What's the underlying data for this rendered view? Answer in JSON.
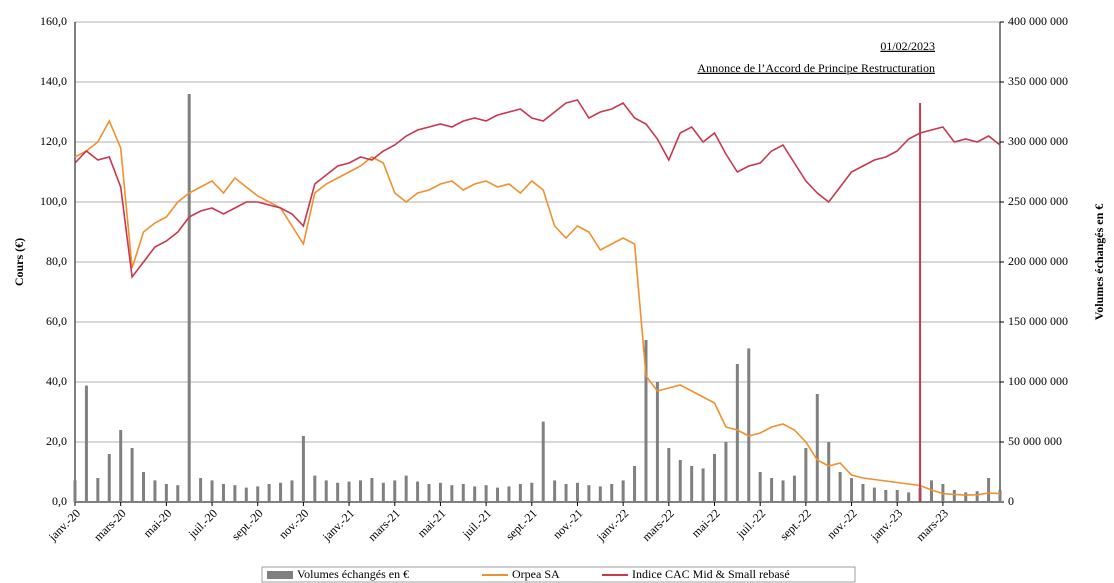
{
  "chart_data": {
    "type": "combo",
    "y_label": "Cours (€)",
    "y2_label": "Volumes échangés en €",
    "annotation": {
      "date": "01/02/2023",
      "text": "Annonce de l’Accord de Principe Restructuration",
      "category_index": 74,
      "value": 133
    },
    "categories": [
      "janv.-20",
      null,
      null,
      null,
      "mars-20",
      null,
      null,
      null,
      "mai-20",
      null,
      null,
      null,
      "juil.-20",
      null,
      null,
      null,
      "sept.-20",
      null,
      null,
      null,
      "nov.-20",
      null,
      null,
      null,
      "janv.-21",
      null,
      null,
      null,
      "mars-21",
      null,
      null,
      null,
      "mai-21",
      null,
      null,
      null,
      "juil.-21",
      null,
      null,
      null,
      "sept.-21",
      null,
      null,
      null,
      "nov.-21",
      null,
      null,
      null,
      "janv.-22",
      null,
      null,
      null,
      "mars-22",
      null,
      null,
      null,
      "mai-22",
      null,
      null,
      null,
      "juil.-22",
      null,
      null,
      null,
      "sept.-22",
      null,
      null,
      null,
      "nov.-22",
      null,
      null,
      null,
      "janv.-23",
      null,
      null,
      null,
      "mars-23",
      null,
      null,
      null,
      null,
      null
    ],
    "ylim": [
      0,
      160
    ],
    "yticks": [
      {
        "value": 0,
        "label": "0,0"
      },
      {
        "value": 20,
        "label": "20,0"
      },
      {
        "value": 40,
        "label": "40,0"
      },
      {
        "value": 60,
        "label": "60,0"
      },
      {
        "value": 80,
        "label": "80,0"
      },
      {
        "value": 100,
        "label": "100,0"
      },
      {
        "value": 120,
        "label": "120,0"
      },
      {
        "value": 140,
        "label": "140,0"
      },
      {
        "value": 160,
        "label": "160,0"
      }
    ],
    "y2lim": [
      0,
      400000000
    ],
    "y2ticks": [
      0,
      {
        "value": 50000000,
        "label": "50 000 000"
      },
      {
        "value": 100000000,
        "label": "100 000 000"
      },
      {
        "value": 150000000,
        "label": "150 000 000"
      },
      {
        "value": 200000000,
        "label": "200 000 000"
      },
      {
        "value": 250000000,
        "label": "250 000 000"
      },
      {
        "value": 300000000,
        "label": "300 000 000"
      },
      {
        "value": 350000000,
        "label": "350 000 000"
      },
      {
        "value": 400000000,
        "label": "400 000 000"
      }
    ],
    "grid": true,
    "series": [
      {
        "name": "Volumes échangés en €",
        "type": "bar",
        "axis": "y2",
        "color": "#808080",
        "values": [
          18000000,
          97000000,
          20000000,
          40000000,
          60000000,
          45000000,
          25000000,
          18000000,
          15000000,
          14000000,
          340000000,
          20000000,
          18000000,
          15000000,
          14000000,
          12000000,
          13000000,
          15000000,
          16000000,
          18000000,
          55000000,
          22000000,
          18000000,
          16000000,
          17000000,
          18000000,
          20000000,
          16000000,
          18000000,
          22000000,
          17000000,
          15000000,
          16000000,
          14000000,
          15000000,
          13000000,
          14000000,
          12000000,
          13000000,
          15000000,
          16000000,
          67000000,
          18000000,
          15000000,
          16000000,
          14000000,
          13000000,
          15000000,
          18000000,
          30000000,
          135000000,
          100000000,
          45000000,
          35000000,
          30000000,
          28000000,
          40000000,
          50000000,
          115000000,
          128000000,
          25000000,
          20000000,
          18000000,
          22000000,
          45000000,
          90000000,
          50000000,
          25000000,
          20000000,
          15000000,
          12000000,
          10000000,
          10000000,
          8000000,
          12000000,
          18000000,
          15000000,
          10000000,
          8000000,
          9000000,
          20000000,
          10000000
        ]
      },
      {
        "name": "Orpea SA",
        "type": "line",
        "axis": "y",
        "color": "#f0902e",
        "values": [
          115,
          117,
          120,
          127,
          118,
          78,
          90,
          93,
          95,
          100,
          103,
          105,
          107,
          103,
          108,
          105,
          102,
          100,
          98,
          92,
          86,
          103,
          106,
          108,
          110,
          112,
          115,
          113,
          103,
          100,
          103,
          104,
          106,
          107,
          104,
          106,
          107,
          105,
          106,
          103,
          107,
          104,
          92,
          88,
          92,
          90,
          84,
          86,
          88,
          86,
          42,
          37,
          38,
          39,
          37,
          35,
          33,
          25,
          24,
          22,
          23,
          25,
          26,
          24,
          20,
          14,
          12,
          13,
          9,
          8,
          7.5,
          7,
          6.5,
          6,
          5.5,
          4,
          2.8,
          2.5,
          2.3,
          2.4,
          3,
          2.8
        ]
      },
      {
        "name": "Indice CAC Mid & Small rebasé",
        "type": "line",
        "axis": "y",
        "color": "#c8384f",
        "values": [
          113,
          117,
          114,
          115,
          105,
          75,
          80,
          85,
          87,
          90,
          95,
          97,
          98,
          96,
          98,
          100,
          100,
          99,
          98,
          96,
          92,
          106,
          109,
          112,
          113,
          115,
          114,
          117,
          119,
          122,
          124,
          125,
          126,
          125,
          127,
          128,
          127,
          129,
          130,
          131,
          128,
          127,
          130,
          133,
          134,
          128,
          130,
          131,
          133,
          128,
          126,
          121,
          114,
          123,
          125,
          120,
          123,
          116,
          110,
          112,
          113,
          117,
          119,
          113,
          107,
          103,
          100,
          105,
          110,
          112,
          114,
          115,
          117,
          121,
          123,
          124,
          125,
          120,
          121,
          120,
          122,
          119
        ]
      }
    ]
  }
}
